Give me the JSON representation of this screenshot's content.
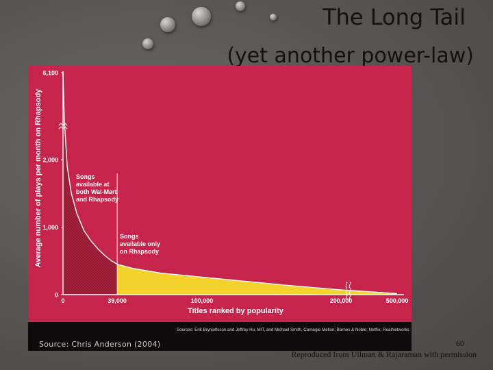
{
  "slide": {
    "title_line1": "The Long Tail",
    "title_line2": "(yet another power-law)",
    "source": "Source: Chris Anderson (2004)",
    "credits": "Sources: Erik Brynjolfsson and Jeffrey Hu, MIT, and Michael Smith, Carnegie Mellon; Barnes & Noble; Netflix; RealNetworks",
    "slide_number": "60",
    "reproduced": "Reproduced from Ullman & Rajaraman with permission"
  },
  "colors": {
    "chart_background": "#c6244a",
    "head_fill": "#8e1a2e",
    "tail_fill": "#f2d22b",
    "curve": "#ffffff"
  },
  "chart_data": {
    "type": "area",
    "title": "",
    "xlabel": "Titles ranked by popularity",
    "ylabel": "Average number of plays per month on Rhapsody",
    "x_ticks": [
      "0",
      "39,000",
      "100,000",
      "200,000",
      "500,000"
    ],
    "y_ticks": [
      "0",
      "1,000",
      "2,000",
      "6,100"
    ],
    "axis_breaks": {
      "y": "between 2,000 and 6,100",
      "x": "between 200,000 and 500,000"
    },
    "series": [
      {
        "name": "Songs available at both Wal-Mart and Rhapsody",
        "x": [
          0,
          1000,
          3000,
          6000,
          10000,
          15000,
          20000,
          25000,
          30000,
          35000,
          39000
        ],
        "y": [
          6100,
          2500,
          1900,
          1500,
          1200,
          950,
          800,
          680,
          580,
          500,
          450
        ]
      },
      {
        "name": "Songs available only on Rhapsody",
        "x": [
          39000,
          50000,
          70000,
          100000,
          130000,
          160000,
          200000,
          500000
        ],
        "y": [
          450,
          390,
          320,
          260,
          200,
          140,
          70,
          15
        ]
      }
    ],
    "annotations": [
      {
        "lines": [
          "Songs",
          "available at",
          "both Wal-Mart",
          "and Rhapsody"
        ]
      },
      {
        "lines": [
          "Songs",
          "available only",
          "on Rhapsody"
        ]
      }
    ],
    "grid": false,
    "legend": "none"
  }
}
